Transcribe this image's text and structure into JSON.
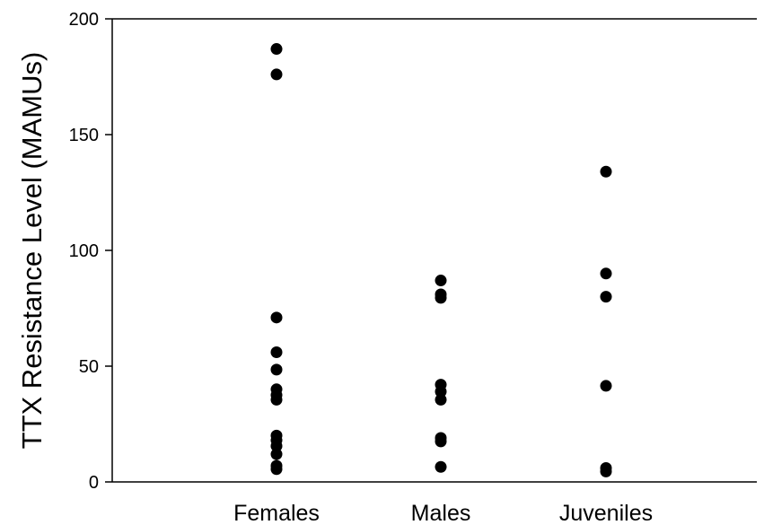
{
  "chart_data": {
    "type": "scatter",
    "title": "",
    "xlabel": "",
    "ylabel": "TTX Resistance Level (MAMUs)",
    "categories": [
      "Females",
      "Males",
      "Juveniles"
    ],
    "ylim": [
      0,
      200
    ],
    "yticks": [
      0,
      50,
      100,
      150,
      200
    ],
    "grid": false,
    "legend": "none",
    "marker_color": "#000000",
    "series": [
      {
        "category": "Females",
        "values": [
          187,
          176,
          71,
          56,
          48.5,
          40,
          37.5,
          35.5,
          20,
          18,
          15.5,
          12,
          7,
          5.5
        ]
      },
      {
        "category": "Males",
        "values": [
          87,
          81,
          79.5,
          42,
          39,
          35.5,
          19,
          17.5,
          6.5
        ]
      },
      {
        "category": "Juveniles",
        "values": [
          134,
          90,
          80,
          41.5,
          6,
          4.5
        ]
      }
    ]
  }
}
